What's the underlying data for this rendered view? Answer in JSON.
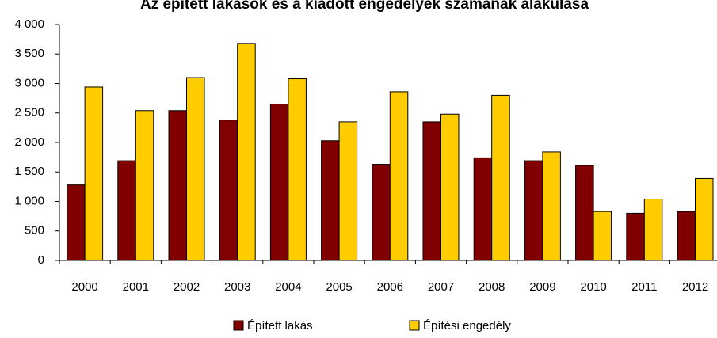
{
  "chart_data": {
    "type": "bar",
    "title": "Az épített lakások és a kiadott engedélyek számának alakulása",
    "categories": [
      "2000",
      "2001",
      "2002",
      "2003",
      "2004",
      "2005",
      "2006",
      "2007",
      "2008",
      "2009",
      "2010",
      "2011",
      "2012"
    ],
    "series": [
      {
        "name": "Épített lakás",
        "color": "#800000",
        "values": [
          1280,
          1690,
          2540,
          2380,
          2650,
          2030,
          1630,
          2350,
          1740,
          1690,
          1610,
          800,
          830
        ]
      },
      {
        "name": "Építési engedély",
        "color": "#ffcc00",
        "values": [
          2940,
          2540,
          3100,
          3680,
          3080,
          2350,
          2860,
          2480,
          2800,
          1840,
          830,
          1040,
          1390
        ]
      }
    ],
    "ylim": [
      0,
      4000
    ],
    "yticks": [
      0,
      500,
      {
        "value": 1000,
        "label": "1 000"
      },
      {
        "value": 1500,
        "label": "1 500"
      },
      {
        "value": 2000,
        "label": "2 000"
      },
      {
        "value": 2500,
        "label": "2 500"
      },
      {
        "value": 3000,
        "label": "3 000"
      },
      {
        "value": 3500,
        "label": "3 500"
      },
      {
        "value": 4000,
        "label": "4 000"
      }
    ],
    "grid": false,
    "legend": "bottom"
  }
}
